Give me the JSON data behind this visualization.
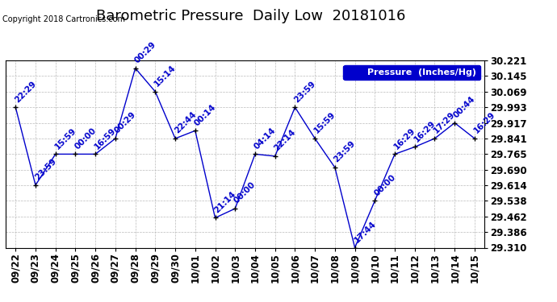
{
  "title": "Barometric Pressure  Daily Low  20181016",
  "copyright": "Copyright 2018 Cartronics.com",
  "legend_label": "Pressure  (Inches/Hg)",
  "x_labels": [
    "09/22",
    "09/23",
    "09/24",
    "09/25",
    "09/26",
    "09/27",
    "09/28",
    "09/29",
    "09/30",
    "10/01",
    "10/02",
    "10/03",
    "10/04",
    "10/05",
    "10/06",
    "10/07",
    "10/08",
    "10/09",
    "10/10",
    "10/11",
    "10/12",
    "10/13",
    "10/14",
    "10/15"
  ],
  "values": [
    29.993,
    29.614,
    29.765,
    29.765,
    29.765,
    29.841,
    30.183,
    30.069,
    29.841,
    29.879,
    29.455,
    29.5,
    29.765,
    29.755,
    29.993,
    29.841,
    29.7,
    29.31,
    29.538,
    29.765,
    29.8,
    29.841,
    29.917,
    29.841
  ],
  "time_labels": [
    "22:29",
    "23:59",
    "15:59",
    "00:00",
    "16:59",
    "00:29",
    "00:29",
    "15:14",
    "22:44",
    "00:14",
    "21:14",
    "00:00",
    "04:14",
    "22:14",
    "23:59",
    "15:59",
    "23:59",
    "17:44",
    "00:00",
    "16:29",
    "16:29",
    "17:29",
    "00:44",
    "16:29"
  ],
  "ylim_min": 29.31,
  "ylim_max": 30.221,
  "yticks": [
    29.31,
    29.386,
    29.462,
    29.538,
    29.614,
    29.69,
    29.765,
    29.841,
    29.917,
    29.993,
    30.069,
    30.145,
    30.221
  ],
  "line_color": "#0000cc",
  "marker_color": "#000000",
  "grid_color": "#bbbbbb",
  "bg_color": "#ffffff",
  "legend_bg": "#0000cc",
  "legend_text_color": "#ffffff",
  "title_color": "#000000",
  "copyright_color": "#000000",
  "label_color": "#0000cc",
  "title_fontsize": 13,
  "tick_fontsize": 8.5,
  "label_fontsize": 7.5
}
